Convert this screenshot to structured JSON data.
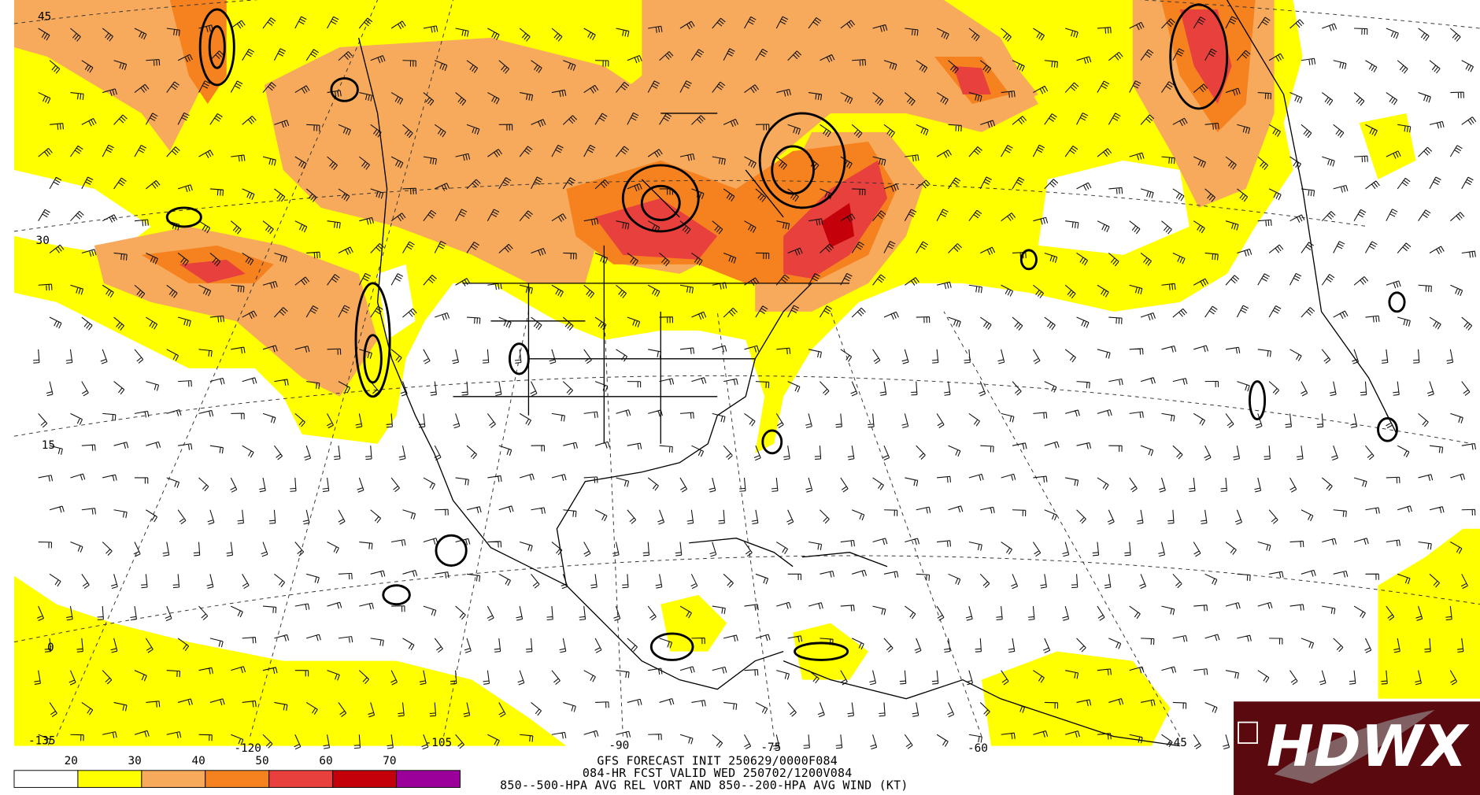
{
  "map": {
    "latitude_labels": [
      "45",
      "30",
      "15",
      "0"
    ],
    "longitude_labels": [
      "-135",
      "-120",
      "-105",
      "-90",
      "-75",
      "-60",
      "-45"
    ]
  },
  "colorbar": {
    "labels": [
      20,
      30,
      40,
      50,
      60,
      70
    ],
    "colors": [
      "#ffffff",
      "#ffff00",
      "#f7a95c",
      "#f5821f",
      "#e8403c",
      "#c4000b",
      "#9b009b"
    ]
  },
  "title_lines": [
    "GFS FORECAST INIT 250629/0000F084",
    "084-HR FCST VALID WED 250702/1200V084",
    "850--500-HPA AVG REL VORT AND 850--200-HPA AVG WIND (KT)"
  ],
  "logo": {
    "text": "HDWX"
  }
}
